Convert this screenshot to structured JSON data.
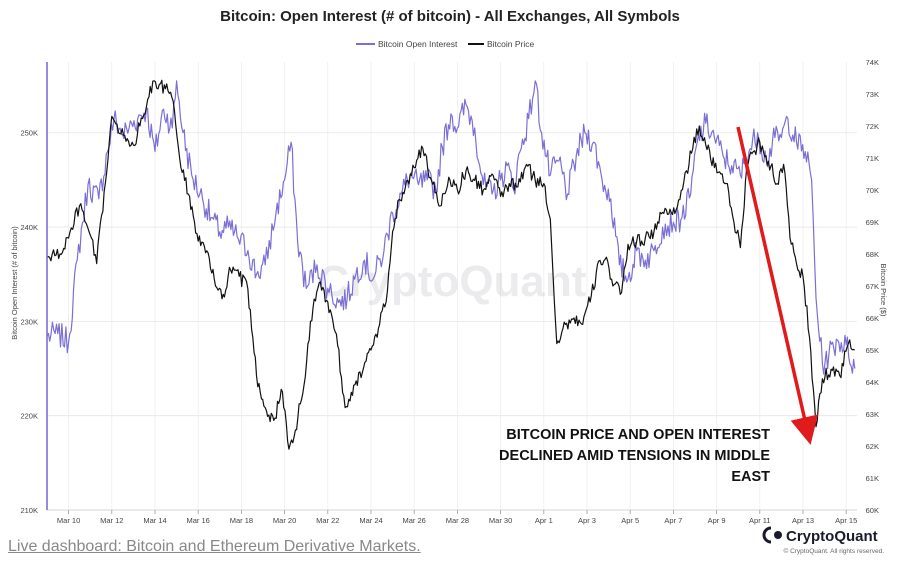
{
  "chart_data": {
    "type": "line",
    "title": "Bitcoin: Open Interest (# of bitcoin) - All Exchanges, All Symbols",
    "ylabel_left": "Bitcoin Open Interest (# of bitcoin)",
    "ylabel_right": "Bitcoin Price ($)",
    "y_left_ticks": [
      "210K",
      "220K",
      "230K",
      "240K",
      "250K"
    ],
    "y_left_range": [
      210000,
      257500
    ],
    "y_right_ticks": [
      "60K",
      "61K",
      "62K",
      "63K",
      "64K",
      "65K",
      "66K",
      "67K",
      "68K",
      "69K",
      "70K",
      "71K",
      "72K",
      "73K",
      "74K"
    ],
    "y_right_range": [
      60000,
      74000
    ],
    "x_ticks": [
      "Mar 10",
      "Mar 12",
      "Mar 14",
      "Mar 16",
      "Mar 18",
      "Mar 20",
      "Mar 22",
      "Mar 24",
      "Mar 26",
      "Mar 28",
      "Mar 30",
      "Apr 1",
      "Apr 3",
      "Apr 5",
      "Apr 7",
      "Apr 9",
      "Apr 11",
      "Apr 13",
      "Apr 15"
    ],
    "x_range_days": [
      9.0,
      46.5
    ],
    "grid": true,
    "legend_position": "top-center",
    "series": [
      {
        "name": "Bitcoin Open Interest",
        "color": "#7b6fd6",
        "axis": "left",
        "points": [
          [
            9.0,
            228400
          ],
          [
            9.5,
            228700
          ],
          [
            10.0,
            227800
          ],
          [
            10.4,
            236500
          ],
          [
            10.9,
            244500
          ],
          [
            11.4,
            243000
          ],
          [
            11.8,
            248000
          ],
          [
            12.1,
            251500
          ],
          [
            12.5,
            249800
          ],
          [
            12.8,
            250500
          ],
          [
            13.2,
            251500
          ],
          [
            13.6,
            252500
          ],
          [
            14.0,
            248000
          ],
          [
            14.4,
            252500
          ],
          [
            14.8,
            250500
          ],
          [
            15.0,
            255500
          ],
          [
            15.3,
            250000
          ],
          [
            15.7,
            245500
          ],
          [
            16.2,
            243000
          ],
          [
            16.6,
            241000
          ],
          [
            17.0,
            239500
          ],
          [
            17.4,
            240000
          ],
          [
            17.8,
            239000
          ],
          [
            18.3,
            237500
          ],
          [
            18.7,
            235000
          ],
          [
            19.1,
            236000
          ],
          [
            19.6,
            241500
          ],
          [
            20.0,
            245000
          ],
          [
            20.3,
            249000
          ],
          [
            20.6,
            238500
          ],
          [
            21.0,
            233500
          ],
          [
            21.5,
            236000
          ],
          [
            22.0,
            233500
          ],
          [
            22.5,
            232000
          ],
          [
            22.9,
            232500
          ],
          [
            23.3,
            235000
          ],
          [
            23.7,
            236500
          ],
          [
            24.1,
            234500
          ],
          [
            24.6,
            237500
          ],
          [
            25.0,
            241500
          ],
          [
            25.4,
            243500
          ],
          [
            25.8,
            245500
          ],
          [
            26.2,
            244500
          ],
          [
            26.6,
            245000
          ],
          [
            27.0,
            244000
          ],
          [
            27.3,
            248500
          ],
          [
            27.7,
            252000
          ],
          [
            28.0,
            250500
          ],
          [
            28.4,
            253000
          ],
          [
            28.8,
            250500
          ],
          [
            29.2,
            244500
          ],
          [
            29.6,
            243500
          ],
          [
            30.0,
            245000
          ],
          [
            30.3,
            246500
          ],
          [
            30.6,
            244000
          ],
          [
            30.9,
            248000
          ],
          [
            31.3,
            251500
          ],
          [
            31.6,
            255500
          ],
          [
            31.9,
            250000
          ],
          [
            32.3,
            245500
          ],
          [
            32.7,
            247000
          ],
          [
            33.1,
            243500
          ],
          [
            33.5,
            247500
          ],
          [
            33.9,
            250000
          ],
          [
            34.3,
            249000
          ],
          [
            34.7,
            245000
          ],
          [
            35.1,
            243000
          ],
          [
            35.5,
            236000
          ],
          [
            35.9,
            234500
          ],
          [
            36.3,
            237500
          ],
          [
            36.7,
            236500
          ],
          [
            37.1,
            237500
          ],
          [
            37.5,
            240000
          ],
          [
            38.0,
            240500
          ],
          [
            38.4,
            241000
          ],
          [
            38.8,
            243500
          ],
          [
            39.1,
            249000
          ],
          [
            39.5,
            251000
          ],
          [
            39.9,
            249500
          ],
          [
            40.3,
            247500
          ],
          [
            40.7,
            246500
          ],
          [
            41.1,
            245500
          ],
          [
            41.5,
            248000
          ],
          [
            41.9,
            250000
          ],
          [
            42.3,
            247000
          ],
          [
            42.7,
            249500
          ],
          [
            43.0,
            249500
          ],
          [
            43.3,
            251500
          ],
          [
            43.7,
            249000
          ],
          [
            44.1,
            248000
          ],
          [
            44.4,
            245000
          ],
          [
            44.6,
            232500
          ],
          [
            44.9,
            225500
          ],
          [
            45.2,
            226500
          ],
          [
            45.6,
            228000
          ],
          [
            46.0,
            227500
          ],
          [
            46.4,
            225000
          ]
        ]
      },
      {
        "name": "Bitcoin Price",
        "color": "#111111",
        "axis": "right",
        "points": [
          [
            9.0,
            67900
          ],
          [
            9.6,
            68000
          ],
          [
            10.0,
            68500
          ],
          [
            10.5,
            69500
          ],
          [
            11.0,
            68600
          ],
          [
            11.3,
            67700
          ],
          [
            11.7,
            70200
          ],
          [
            12.0,
            72300
          ],
          [
            12.3,
            71800
          ],
          [
            12.6,
            71700
          ],
          [
            13.0,
            71400
          ],
          [
            13.3,
            72000
          ],
          [
            13.6,
            72600
          ],
          [
            13.9,
            73400
          ],
          [
            14.2,
            73300
          ],
          [
            14.6,
            73100
          ],
          [
            14.9,
            72500
          ],
          [
            15.2,
            70700
          ],
          [
            15.6,
            69800
          ],
          [
            16.0,
            68400
          ],
          [
            16.4,
            68100
          ],
          [
            16.8,
            67000
          ],
          [
            17.1,
            66600
          ],
          [
            17.5,
            67500
          ],
          [
            17.9,
            67300
          ],
          [
            18.3,
            66900
          ],
          [
            18.7,
            64200
          ],
          [
            19.1,
            63200
          ],
          [
            19.5,
            62800
          ],
          [
            19.9,
            63700
          ],
          [
            20.2,
            61900
          ],
          [
            20.5,
            62500
          ],
          [
            20.9,
            63900
          ],
          [
            21.2,
            65900
          ],
          [
            21.6,
            67100
          ],
          [
            22.0,
            66500
          ],
          [
            22.4,
            65500
          ],
          [
            22.8,
            63200
          ],
          [
            23.2,
            63900
          ],
          [
            23.6,
            64300
          ],
          [
            24.0,
            65000
          ],
          [
            24.4,
            65800
          ],
          [
            24.7,
            66500
          ],
          [
            25.0,
            68700
          ],
          [
            25.3,
            69700
          ],
          [
            25.7,
            70300
          ],
          [
            26.0,
            70700
          ],
          [
            26.4,
            71300
          ],
          [
            26.8,
            70300
          ],
          [
            27.2,
            69500
          ],
          [
            27.6,
            70400
          ],
          [
            28.0,
            70000
          ],
          [
            28.4,
            70600
          ],
          [
            28.8,
            70300
          ],
          [
            29.2,
            70000
          ],
          [
            29.6,
            70500
          ],
          [
            30.0,
            69800
          ],
          [
            30.4,
            70200
          ],
          [
            30.8,
            70100
          ],
          [
            31.2,
            70800
          ],
          [
            31.6,
            70300
          ],
          [
            32.0,
            70200
          ],
          [
            32.3,
            69100
          ],
          [
            32.6,
            65200
          ],
          [
            33.0,
            65800
          ],
          [
            33.4,
            66000
          ],
          [
            33.8,
            65800
          ],
          [
            34.2,
            66700
          ],
          [
            34.6,
            67800
          ],
          [
            34.9,
            67900
          ],
          [
            35.2,
            67000
          ],
          [
            35.6,
            66800
          ],
          [
            35.9,
            68300
          ],
          [
            36.3,
            68400
          ],
          [
            36.7,
            68500
          ],
          [
            37.1,
            68700
          ],
          [
            37.5,
            69300
          ],
          [
            37.9,
            69300
          ],
          [
            38.3,
            69700
          ],
          [
            38.6,
            70600
          ],
          [
            38.9,
            71300
          ],
          [
            39.2,
            72000
          ],
          [
            39.5,
            71400
          ],
          [
            39.9,
            70700
          ],
          [
            40.2,
            70500
          ],
          [
            40.5,
            70200
          ],
          [
            40.8,
            69000
          ],
          [
            41.1,
            68200
          ],
          [
            41.4,
            70700
          ],
          [
            41.7,
            71200
          ],
          [
            42.0,
            71500
          ],
          [
            42.4,
            70900
          ],
          [
            42.8,
            70200
          ],
          [
            43.1,
            70800
          ],
          [
            43.4,
            68500
          ],
          [
            43.7,
            67700
          ],
          [
            44.0,
            67300
          ],
          [
            44.3,
            65400
          ],
          [
            44.6,
            62600
          ],
          [
            44.9,
            64100
          ],
          [
            45.3,
            64400
          ],
          [
            45.7,
            64200
          ],
          [
            46.1,
            65200
          ],
          [
            46.4,
            65000
          ]
        ]
      }
    ],
    "annotation_lines": [
      "BITCOIN PRICE AND OPEN INTEREST",
      "DECLINED AMID TENSIONS IN MIDDLE",
      "EAST"
    ],
    "watermark": "CryptoQuant"
  },
  "arrow_color": "#e01b1b",
  "branding": {
    "logo_name": "CryptoQuant",
    "rights": "© CryptoQuant. All rights reserved."
  },
  "footer": {
    "link_text": "Live dashboard: Bitcoin and Ethereum Derivative Markets."
  }
}
